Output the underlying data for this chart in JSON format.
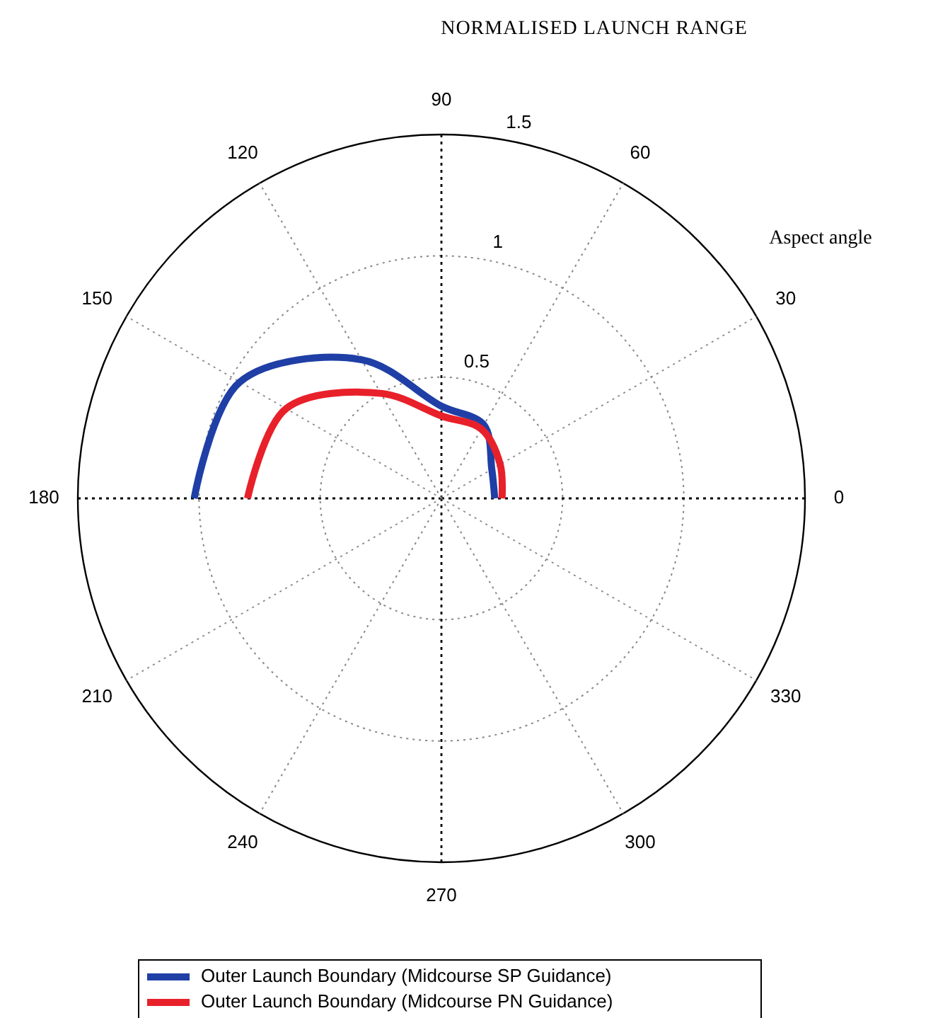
{
  "chart_data": {
    "type": "radar",
    "title": "NORMALISED LAUNCH RANGE",
    "annotations": [
      "Aspect angle"
    ],
    "categories": [
      "90",
      "60",
      "30",
      "0",
      "330",
      "300",
      "270",
      "240",
      "210",
      "180",
      "150",
      "120"
    ],
    "ylim": [
      0,
      1.5
    ],
    "yticks": [
      0.5,
      1,
      1.5
    ],
    "grid": true,
    "legend": "bottom",
    "series": [
      {
        "name": "Outer Launch Boundary (Midcourse SP Guidance)",
        "color": "#1f3fa6",
        "values": [
          0.38,
          0.35,
          0.24,
          0.22,
          null,
          null,
          null,
          null,
          null,
          1.02,
          0.96,
          0.66
        ]
      },
      {
        "name": "Outer Launch Boundary (Midcourse PN Guidance)",
        "color": "#e8202a",
        "values": [
          0.34,
          0.33,
          0.28,
          0.25,
          null,
          null,
          null,
          null,
          null,
          0.8,
          0.74,
          0.5
        ]
      }
    ]
  }
}
